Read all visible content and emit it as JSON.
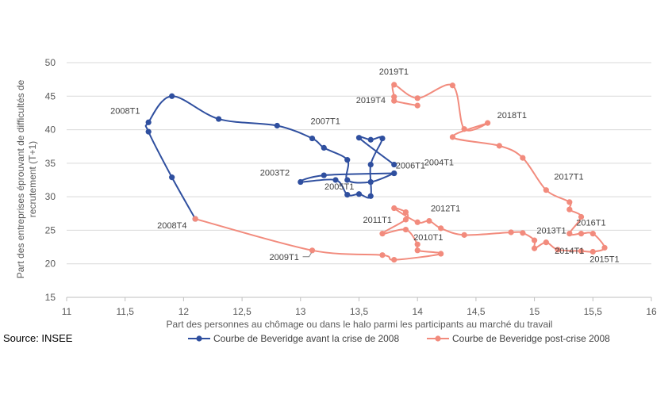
{
  "source": "Source: INSEE",
  "colors": {
    "before": "#2f4f9f",
    "after": "#f28b7d",
    "grid": "#d9d9d9",
    "axis_text": "#595959"
  },
  "chart_data": {
    "type": "line",
    "xlabel": "Part des personnes au chômage ou dans le halo parmi les participants au marché du travail",
    "ylabel_lines": [
      "Part des entreprises éprouvant  de difficultés de",
      "recrutement (T+1)"
    ],
    "xlim": [
      11,
      16
    ],
    "ylim": [
      15,
      50
    ],
    "x_ticks": [
      "11",
      "11,5",
      "12",
      "12,5",
      "13",
      "13,5",
      "14",
      "14,5",
      "15",
      "15,5",
      "16"
    ],
    "y_ticks": [
      "15",
      "20",
      "25",
      "30",
      "35",
      "40",
      "45",
      "50"
    ],
    "grid": "horizontal",
    "legend_position": "bottom",
    "series": [
      {
        "name": "Courbe de Beveridge avant la crise de 2008",
        "color": "#2f4f9f",
        "points": [
          [
            13.8,
            33.5
          ],
          [
            13.6,
            32.2
          ],
          [
            13.4,
            32.5
          ],
          [
            13.4,
            35.5
          ],
          [
            13.2,
            37.3
          ],
          [
            13.1,
            38.7
          ],
          [
            12.8,
            40.6
          ],
          [
            12.3,
            41.6
          ],
          [
            11.9,
            45
          ],
          [
            11.7,
            41.1
          ],
          [
            11.7,
            39.7
          ],
          [
            11.9,
            32.9
          ],
          [
            12.1,
            26.7
          ]
        ],
        "points_loop": [
          [
            13.8,
            33.5
          ],
          [
            13.2,
            33.2
          ],
          [
            13.0,
            32.2
          ],
          [
            13.3,
            32.5
          ],
          [
            13.4,
            30.3
          ],
          [
            13.5,
            30.4
          ],
          [
            13.6,
            30.1
          ],
          [
            13.6,
            34.8
          ],
          [
            13.7,
            38.7
          ],
          [
            13.6,
            38.5
          ],
          [
            13.5,
            38.8
          ],
          [
            13.8,
            34.8
          ]
        ],
        "labels": [
          {
            "text": "2008T1",
            "x": 11.7,
            "y": 41.1
          },
          {
            "text": "2007T1",
            "x": 13.1,
            "y": 38.7
          },
          {
            "text": "2004T1",
            "x": 13.8,
            "y": 34.8
          },
          {
            "text": "2003T2",
            "x": 13.0,
            "y": 32.2
          },
          {
            "text": "2006T1",
            "x": 13.8,
            "y": 33.5
          },
          {
            "text": "2005T1",
            "x": 13.3,
            "y": 32.5
          },
          {
            "text": "2008T4",
            "x": 12.1,
            "y": 26.7
          }
        ]
      },
      {
        "name": "Courbe de Beveridge post-crise 2008",
        "color": "#f28b7d",
        "points": [
          [
            12.1,
            26.7
          ],
          [
            13.1,
            22.0
          ],
          [
            13.7,
            21.3
          ],
          [
            13.8,
            20.6
          ],
          [
            14.2,
            21.5
          ],
          [
            14.0,
            22.0
          ],
          [
            14.0,
            22.9
          ],
          [
            13.9,
            25.1
          ],
          [
            13.7,
            24.5
          ],
          [
            13.9,
            26.6
          ],
          [
            13.9,
            27.7
          ],
          [
            13.8,
            28.3
          ],
          [
            14.0,
            26.2
          ],
          [
            14.1,
            26.4
          ],
          [
            14.2,
            25.3
          ],
          [
            14.4,
            24.3
          ],
          [
            14.8,
            24.7
          ],
          [
            14.9,
            24.6
          ],
          [
            15.0,
            23.5
          ],
          [
            15.0,
            22.3
          ],
          [
            15.1,
            23.2
          ],
          [
            15.2,
            22.1
          ],
          [
            15.4,
            21.9
          ],
          [
            15.5,
            21.8
          ],
          [
            15.6,
            22.4
          ],
          [
            15.5,
            24.5
          ],
          [
            15.4,
            24.5
          ],
          [
            15.3,
            24.5
          ],
          [
            15.4,
            27.0
          ],
          [
            15.3,
            28.1
          ],
          [
            15.3,
            29.2
          ],
          [
            15.1,
            31.0
          ],
          [
            14.9,
            35.8
          ],
          [
            14.7,
            37.6
          ],
          [
            14.3,
            38.9
          ],
          [
            14.6,
            41.0
          ],
          [
            14.4,
            40.1
          ],
          [
            14.3,
            46.6
          ],
          [
            14.0,
            44.7
          ],
          [
            13.8,
            46.7
          ],
          [
            13.8,
            44.9
          ],
          [
            13.8,
            44.3
          ],
          [
            14.0,
            43.6
          ]
        ],
        "labels": [
          {
            "text": "2019T1",
            "x": 13.8,
            "y": 46.7
          },
          {
            "text": "2019T4",
            "x": 13.8,
            "y": 44.3
          },
          {
            "text": "2018T1",
            "x": 14.6,
            "y": 41.0
          },
          {
            "text": "2017T1",
            "x": 15.1,
            "y": 31.0
          },
          {
            "text": "2011T1",
            "x": 13.9,
            "y": 26.6
          },
          {
            "text": "2012T1",
            "x": 14.1,
            "y": 26.4
          },
          {
            "text": "2013T1",
            "x": 15.1,
            "y": 23.2
          },
          {
            "text": "2016T1",
            "x": 15.5,
            "y": 24.5
          },
          {
            "text": "2014T1",
            "x": 15.2,
            "y": 22.1
          },
          {
            "text": "2010T1",
            "x": 14.0,
            "y": 22.0
          },
          {
            "text": "2015T1",
            "x": 15.5,
            "y": 21.8
          },
          {
            "text": "2009T1",
            "x": 13.1,
            "y": 22.0
          }
        ]
      }
    ]
  }
}
